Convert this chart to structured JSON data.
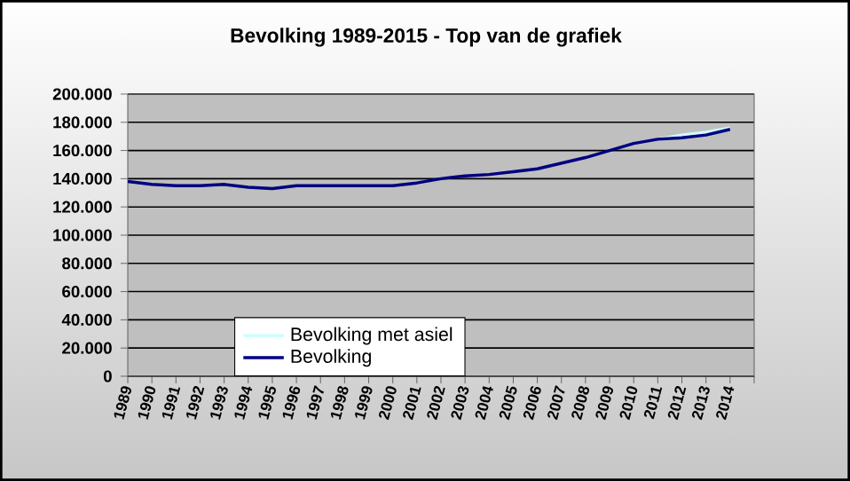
{
  "chart_data": {
    "type": "line",
    "title": "Bevolking 1989-2015 - Top van de grafiek",
    "categories": [
      "1989",
      "1990",
      "1991",
      "1992",
      "1993",
      "1994",
      "1995",
      "1996",
      "1997",
      "1998",
      "1999",
      "2000",
      "2001",
      "2002",
      "2003",
      "2004",
      "2005",
      "2006",
      "2007",
      "2008",
      "2009",
      "2010",
      "2011",
      "2012",
      "2013",
      "2014"
    ],
    "series": [
      {
        "name": "Bevolking met asiel",
        "color": "#ccffff",
        "values": [
          null,
          null,
          null,
          null,
          null,
          null,
          null,
          null,
          null,
          null,
          null,
          null,
          null,
          null,
          null,
          null,
          null,
          null,
          null,
          null,
          null,
          null,
          168000,
          171000,
          173000,
          176000
        ]
      },
      {
        "name": "Bevolking",
        "color": "#000080",
        "values": [
          138000,
          136000,
          135000,
          135000,
          136000,
          134000,
          133000,
          135000,
          135000,
          135000,
          135000,
          135000,
          137000,
          140000,
          142000,
          143000,
          145000,
          147000,
          151000,
          155000,
          160000,
          165000,
          168000,
          169000,
          171000,
          175000
        ]
      }
    ],
    "ylim": [
      0,
      200000
    ],
    "yticks": [
      {
        "value": 0,
        "label": "0"
      },
      {
        "value": 20000,
        "label": "20.000"
      },
      {
        "value": 40000,
        "label": "40.000"
      },
      {
        "value": 60000,
        "label": "60.000"
      },
      {
        "value": 80000,
        "label": "80.000"
      },
      {
        "value": 100000,
        "label": "100.000"
      },
      {
        "value": 120000,
        "label": "120.000"
      },
      {
        "value": 140000,
        "label": "140.000"
      },
      {
        "value": 160000,
        "label": "160.000"
      },
      {
        "value": 180000,
        "label": "180.000"
      },
      {
        "value": 200000,
        "label": "200.000"
      }
    ],
    "grid": "y",
    "legend": "bottom",
    "marker": "none",
    "line_style": "solid"
  }
}
